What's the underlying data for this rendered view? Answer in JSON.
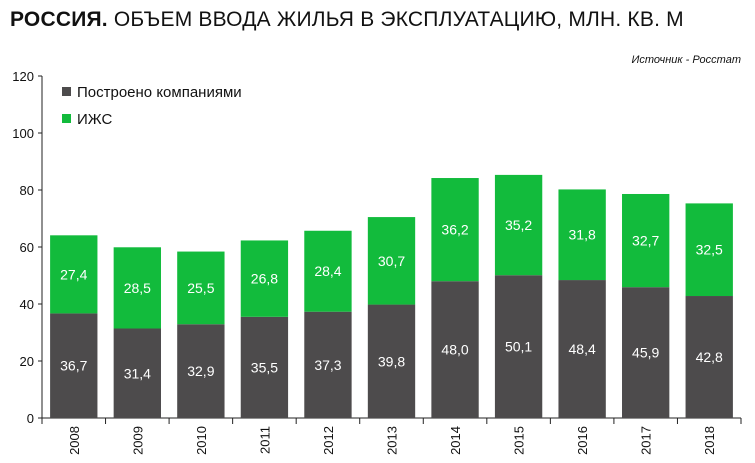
{
  "header": {
    "title_bold": "РОССИЯ.",
    "title_rest": " ОБЪЕМ ВВОДА  ЖИЛЬЯ В ЭКСПЛУАТАЦИЮ, МЛН. КВ. М",
    "source": "Источник - Росстат"
  },
  "chart_data": {
    "type": "bar",
    "stacked": true,
    "title": "РОССИЯ. ОБЪЕМ ВВОДА  ЖИЛЬЯ В ЭКСПЛУАТАЦИЮ, МЛН. КВ. М",
    "categories": [
      "2008",
      "2009",
      "2010",
      "2011",
      "2012",
      "2013",
      "2014",
      "2015",
      "2016",
      "2017",
      "2018"
    ],
    "series": [
      {
        "name": "Построено компаниями",
        "color": "#4d4b4c",
        "values": [
          36.7,
          31.4,
          32.9,
          35.5,
          37.3,
          39.8,
          48.0,
          50.1,
          48.4,
          45.9,
          42.8
        ],
        "labels": [
          "36,7",
          "31,4",
          "32,9",
          "35,5",
          "37,3",
          "39,8",
          "48,0",
          "50,1",
          "48,4",
          "45,9",
          "42,8"
        ]
      },
      {
        "name": "ИЖС",
        "color": "#12bb3c",
        "values": [
          27.4,
          28.5,
          25.5,
          26.8,
          28.4,
          30.7,
          36.2,
          35.2,
          31.8,
          32.7,
          32.5
        ],
        "labels": [
          "27,4",
          "28,5",
          "25,5",
          "26,8",
          "28,4",
          "30,7",
          "36,2",
          "35,2",
          "31,8",
          "32,7",
          "32,5"
        ]
      }
    ],
    "yticks": [
      "0",
      "20",
      "40",
      "60",
      "80",
      "100",
      "120"
    ],
    "ylim": [
      0,
      120
    ],
    "grid": false,
    "legend_position": "top-left"
  }
}
